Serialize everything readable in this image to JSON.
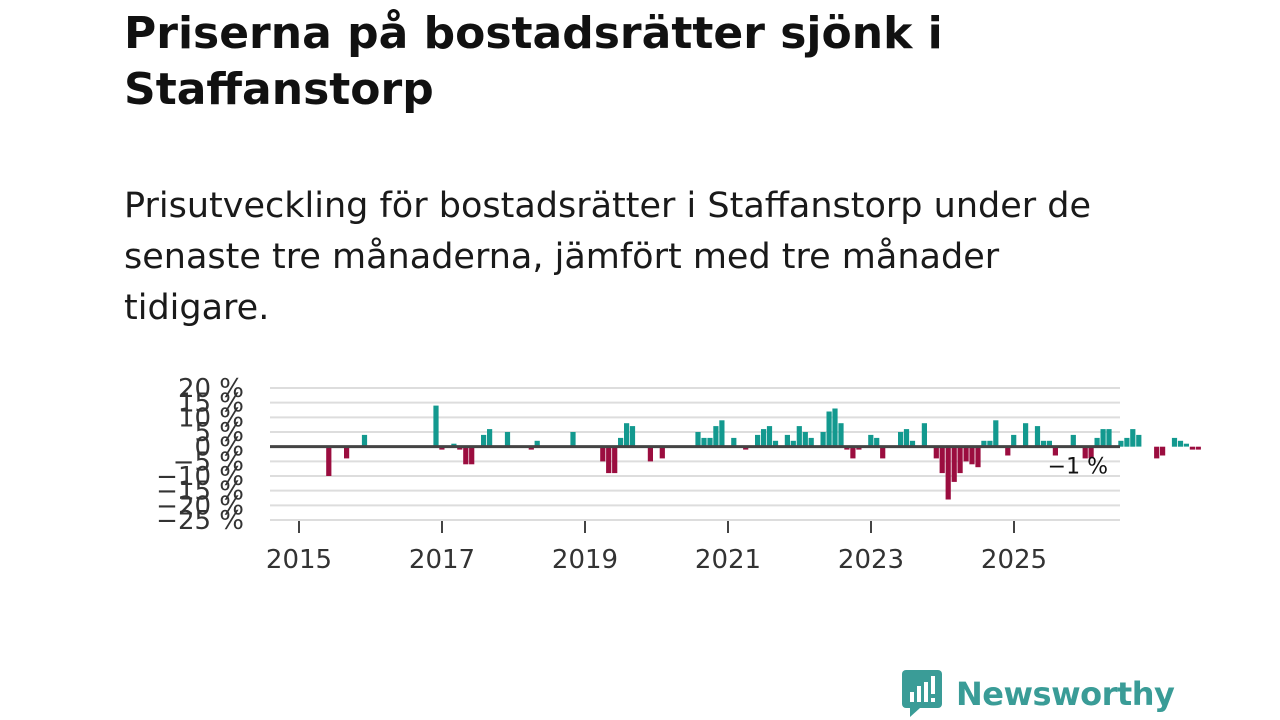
{
  "header": {
    "title": "Priserna på bostadsrätter sjönk i Staffanstorp",
    "subtitle": "Prisutveckling för bostadsrätter i Staffanstorp under de senaste tre månaderna, jämfört med tre månader tidigare."
  },
  "colors": {
    "positive": "#13998f",
    "negative": "#9b0d3f",
    "grid": "#dddddd",
    "zero": "#444444",
    "brand": "#3a9c97"
  },
  "brand": {
    "name": "Newsworthy"
  },
  "chart_data": {
    "type": "bar",
    "title": "Priserna på bostadsrätter sjönk i Staffanstorp",
    "xlabel": "",
    "ylabel": "",
    "y_unit": " %",
    "ylim": [
      -25,
      20
    ],
    "y_ticks": [
      20,
      15,
      10,
      5,
      0,
      -5,
      -10,
      -15,
      -20,
      -25
    ],
    "y_tick_labels": [
      "20 %",
      "15 %",
      "10 %",
      "5 %",
      "0 %",
      "−5 %",
      "−10 %",
      "−15 %",
      "−20 %",
      "−25 %"
    ],
    "x_ticks": [
      2015,
      2017,
      2019,
      2021,
      2023,
      2025
    ],
    "x_tick_labels": [
      "2015",
      "2017",
      "2019",
      "2021",
      "2023",
      "2025"
    ],
    "x_start": 2015.0,
    "x_step": 0.0833,
    "last_label": "−1 %",
    "values": [
      0,
      0,
      0,
      0,
      0,
      -10,
      0,
      0,
      -4,
      0,
      0,
      4,
      0,
      0,
      0,
      0,
      0,
      0,
      0,
      0,
      0,
      0,
      0,
      14,
      -1,
      0,
      1,
      -1,
      -6,
      -6,
      0,
      4,
      6,
      0,
      0,
      5,
      0,
      0,
      0,
      -1,
      2,
      0,
      0,
      0,
      0,
      0,
      5,
      0,
      0,
      0,
      0,
      -5,
      -9,
      -9,
      3,
      8,
      7,
      0,
      0,
      -5,
      0,
      -4,
      0,
      0,
      0,
      0,
      0,
      5,
      3,
      3,
      7,
      9,
      0,
      3,
      0,
      -1,
      0,
      4,
      6,
      7,
      2,
      0,
      4,
      2,
      7,
      5,
      3,
      0,
      5,
      12,
      13,
      8,
      -1,
      -4,
      -1,
      0,
      4,
      3,
      -4,
      0,
      0,
      5,
      6,
      2,
      0,
      8,
      0,
      -4,
      -9,
      -18,
      -12,
      -9,
      -5,
      -6,
      -7,
      2,
      2,
      9,
      0,
      -3,
      4,
      0,
      8,
      0,
      7,
      2,
      2,
      -3,
      0,
      0,
      4,
      0,
      -4,
      -4,
      3,
      6,
      6,
      0,
      2,
      3,
      6,
      4,
      0,
      0,
      -4,
      -3,
      0,
      3,
      2,
      1,
      -1,
      -1
    ]
  }
}
